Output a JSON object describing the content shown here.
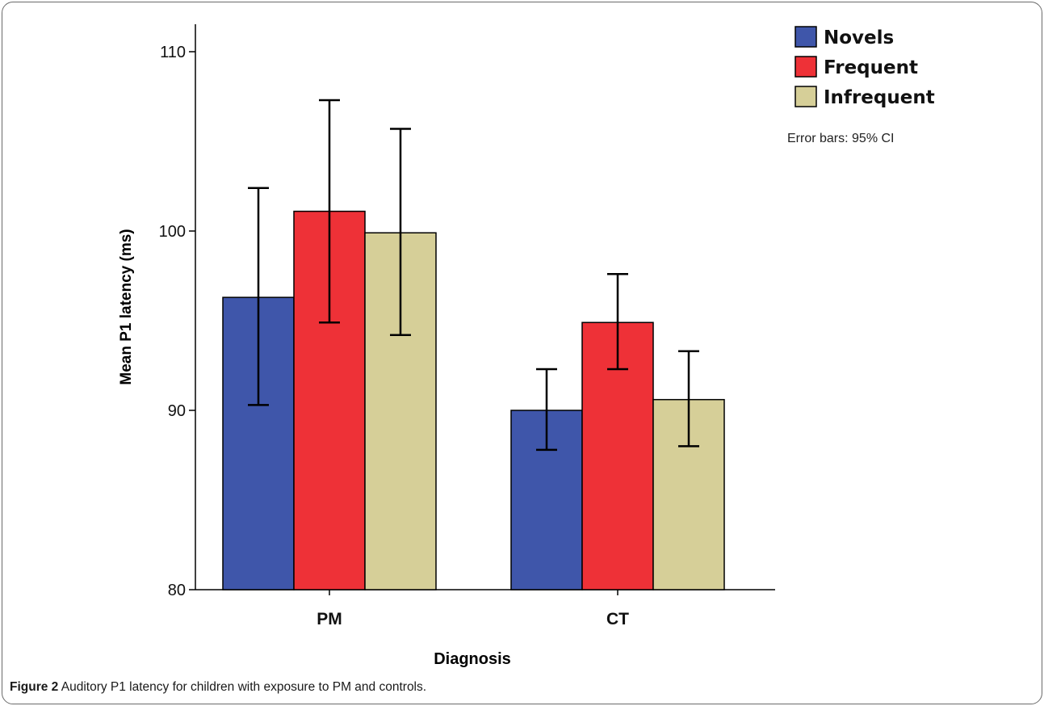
{
  "caption": {
    "label": "Figure 2",
    "text": "Auditory P1 latency for children with exposure to PM and controls"
  },
  "chart_data": {
    "type": "bar",
    "title": "",
    "xlabel": "Diagnosis",
    "ylabel": "Mean P1 latency (ms)",
    "ylim": [
      80,
      110
    ],
    "yticks": [
      80,
      90,
      100,
      110
    ],
    "categories": [
      "PM",
      "CT"
    ],
    "series": [
      {
        "name": "Novels",
        "color": "#3f56aa",
        "values": [
          96.3,
          90.0
        ],
        "ci_low": [
          90.3,
          87.8
        ],
        "ci_high": [
          102.4,
          92.3
        ]
      },
      {
        "name": "Frequent",
        "color": "#ee3137",
        "values": [
          101.1,
          94.9
        ],
        "ci_low": [
          94.9,
          92.3
        ],
        "ci_high": [
          107.3,
          97.6
        ]
      },
      {
        "name": "Infrequent",
        "color": "#d6cf98",
        "values": [
          99.9,
          90.6
        ],
        "ci_low": [
          94.2,
          88.0
        ],
        "ci_high": [
          105.7,
          93.3
        ]
      }
    ],
    "legend_position": "top-right",
    "note": "Error bars: 95% CI",
    "grid": false
  }
}
